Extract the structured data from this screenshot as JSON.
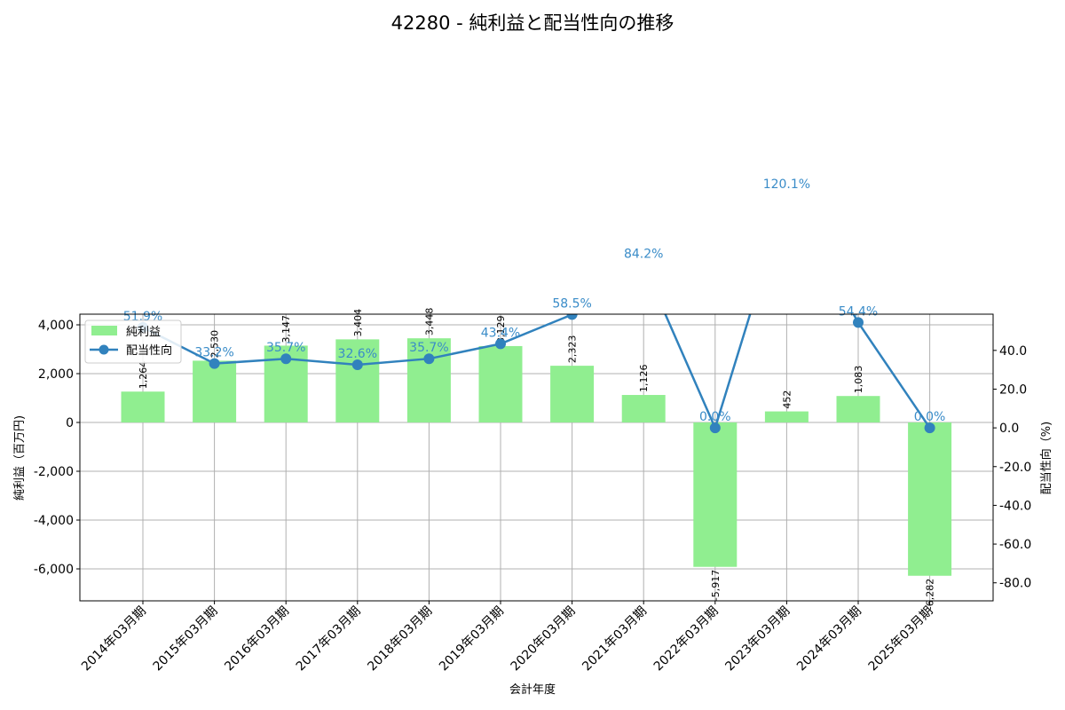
{
  "chart_data": {
    "type": "bar+line",
    "title": "42280 - 純利益と配当性向の推移",
    "xlabel": "会計年度",
    "ylabel_left": "純利益（百万円)",
    "ylabel_right": "配当性向（%)",
    "categories": [
      "2014年03月期",
      "2015年03月期",
      "2016年03月期",
      "2017年03月期",
      "2018年03月期",
      "2019年03月期",
      "2020年03月期",
      "2021年03月期",
      "2022年03月期",
      "2023年03月期",
      "2024年03月期",
      "2025年03月期"
    ],
    "series": [
      {
        "name": "純利益",
        "type": "bar",
        "axis": "left",
        "color": "#90ee90",
        "values": [
          1264,
          2530,
          3147,
          3404,
          3448,
          3129,
          2323,
          1126,
          -5917,
          452,
          1083,
          -6282
        ],
        "labels": [
          "1,264",
          "2,530",
          "3,147",
          "3,404",
          "3,448",
          "3,129",
          "2,323",
          "1,126",
          "-5,917",
          "452",
          "1,083",
          "-6,282"
        ]
      },
      {
        "name": "配当性向",
        "type": "line",
        "axis": "right",
        "color": "#3182bd",
        "values": [
          51.9,
          33.2,
          35.7,
          32.6,
          35.7,
          43.4,
          58.5,
          84.2,
          0.0,
          120.1,
          54.4,
          0.0
        ],
        "labels": [
          "51.9%",
          "33.2%",
          "35.7%",
          "32.6%",
          "35.7%",
          "43.4%",
          "58.5%",
          "84.2%",
          "0.0%",
          "120.1%",
          "54.4%",
          "0.0%"
        ]
      }
    ],
    "ylim_left": [
      -7309,
      4436
    ],
    "ylim_right": [
      -89.3,
      58.7
    ],
    "yticks_left": [
      4000,
      2000,
      0,
      -2000,
      -4000,
      -6000
    ],
    "yticks_left_labels": [
      "4,000",
      "2,000",
      "0",
      "-2,000",
      "-4,000",
      "-6,000"
    ],
    "yticks_right": [
      40,
      20,
      0,
      -20,
      -40,
      -60,
      -80
    ],
    "yticks_right_labels": [
      "40.0",
      "20.0",
      "0.0",
      "-20.0",
      "-40.0",
      "-60.0",
      "-80.0"
    ],
    "grid": true,
    "legend_position": "upper left"
  }
}
